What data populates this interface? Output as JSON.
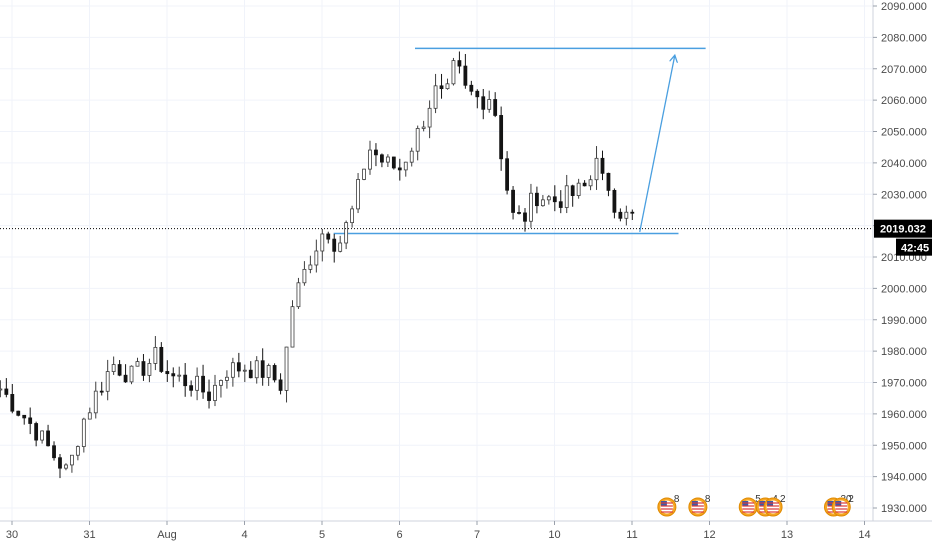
{
  "chart_data": {
    "type": "candlestick",
    "title": "",
    "xlabel": "",
    "ylabel": "",
    "ylim": [
      1925,
      2093
    ],
    "grid": true,
    "y_ticks": [
      "1930.000",
      "1940.000",
      "1950.000",
      "1960.000",
      "1970.000",
      "1980.000",
      "1990.000",
      "2000.000",
      "2010.000",
      "2020.000",
      "2030.000",
      "2040.000",
      "2050.000",
      "2060.000",
      "2070.000",
      "2080.000",
      "2090.000"
    ],
    "x_ticks": [
      {
        "label": "30",
        "day": 0
      },
      {
        "label": "31",
        "day": 1
      },
      {
        "label": "Aug",
        "day": 2
      },
      {
        "label": "4",
        "day": 3
      },
      {
        "label": "5",
        "day": 4
      },
      {
        "label": "6",
        "day": 5
      },
      {
        "label": "7",
        "day": 6
      },
      {
        "label": "10",
        "day": 7
      },
      {
        "label": "11",
        "day": 8
      },
      {
        "label": "12",
        "day": 9
      },
      {
        "label": "13",
        "day": 10
      },
      {
        "label": "14",
        "day": 11
      }
    ],
    "keypoints": [
      {
        "day": -0.15,
        "price": 1968
      },
      {
        "day": 0.3,
        "price": 1955
      },
      {
        "day": 0.5,
        "price": 1948
      },
      {
        "day": 0.72,
        "price": 1941
      },
      {
        "day": 0.9,
        "price": 1957
      },
      {
        "day": 1.1,
        "price": 1967
      },
      {
        "day": 1.3,
        "price": 1976
      },
      {
        "day": 1.55,
        "price": 1972
      },
      {
        "day": 1.85,
        "price": 1978
      },
      {
        "day": 2.05,
        "price": 1972
      },
      {
        "day": 2.3,
        "price": 1970
      },
      {
        "day": 2.55,
        "price": 1966
      },
      {
        "day": 2.75,
        "price": 1974
      },
      {
        "day": 3.0,
        "price": 1975
      },
      {
        "day": 3.3,
        "price": 1973
      },
      {
        "day": 3.48,
        "price": 1969
      },
      {
        "day": 3.62,
        "price": 1995
      },
      {
        "day": 3.85,
        "price": 2010
      },
      {
        "day": 4.05,
        "price": 2020
      },
      {
        "day": 4.2,
        "price": 2013
      },
      {
        "day": 4.4,
        "price": 2025
      },
      {
        "day": 4.6,
        "price": 2045
      },
      {
        "day": 4.8,
        "price": 2040
      },
      {
        "day": 5.0,
        "price": 2038
      },
      {
        "day": 5.25,
        "price": 2050
      },
      {
        "day": 5.45,
        "price": 2063
      },
      {
        "day": 5.6,
        "price": 2060
      },
      {
        "day": 5.72,
        "price": 2072
      },
      {
        "day": 5.85,
        "price": 2063
      },
      {
        "day": 6.05,
        "price": 2060
      },
      {
        "day": 6.2,
        "price": 2062
      },
      {
        "day": 6.3,
        "price": 2045
      },
      {
        "day": 6.45,
        "price": 2023
      },
      {
        "day": 6.6,
        "price": 2022
      },
      {
        "day": 6.75,
        "price": 2030
      },
      {
        "day": 7.0,
        "price": 2028
      },
      {
        "day": 7.25,
        "price": 2030
      },
      {
        "day": 7.45,
        "price": 2033
      },
      {
        "day": 7.55,
        "price": 2045
      },
      {
        "day": 7.65,
        "price": 2030
      },
      {
        "day": 7.8,
        "price": 2025
      },
      {
        "day": 7.95,
        "price": 2027
      },
      {
        "day": 8.05,
        "price": 2019
      }
    ],
    "last_price": "2019.032",
    "countdown": "42:45",
    "drawings": [
      {
        "name": "resistance-line",
        "from": {
          "day": 5.2,
          "price": 2076.5
        },
        "to": {
          "day": 8.95,
          "price": 2076.5
        }
      },
      {
        "name": "support-line",
        "from": {
          "day": 4.15,
          "price": 2017.5
        },
        "to": {
          "day": 8.6,
          "price": 2017.5
        }
      },
      {
        "name": "projection-arrow",
        "from": {
          "day": 8.1,
          "price": 2018
        },
        "to": {
          "day": 8.55,
          "price": 2074
        }
      }
    ],
    "events": [
      {
        "day": 8.45,
        "count": "8"
      },
      {
        "day": 8.85,
        "count": "8"
      },
      {
        "day": 9.5,
        "count": "5"
      },
      {
        "day": 9.72,
        "count": "4"
      },
      {
        "day": 9.82,
        "count": "2"
      },
      {
        "day": 10.6,
        "count": "30"
      },
      {
        "day": 10.7,
        "count": "2"
      }
    ],
    "colors": {
      "up": "#3d3d3d",
      "down": "#141414",
      "drawing": "#4a9fe0",
      "grid": "#f0f3fa",
      "axis_text": "#4a4a4a",
      "price_tag": "#000000"
    }
  }
}
